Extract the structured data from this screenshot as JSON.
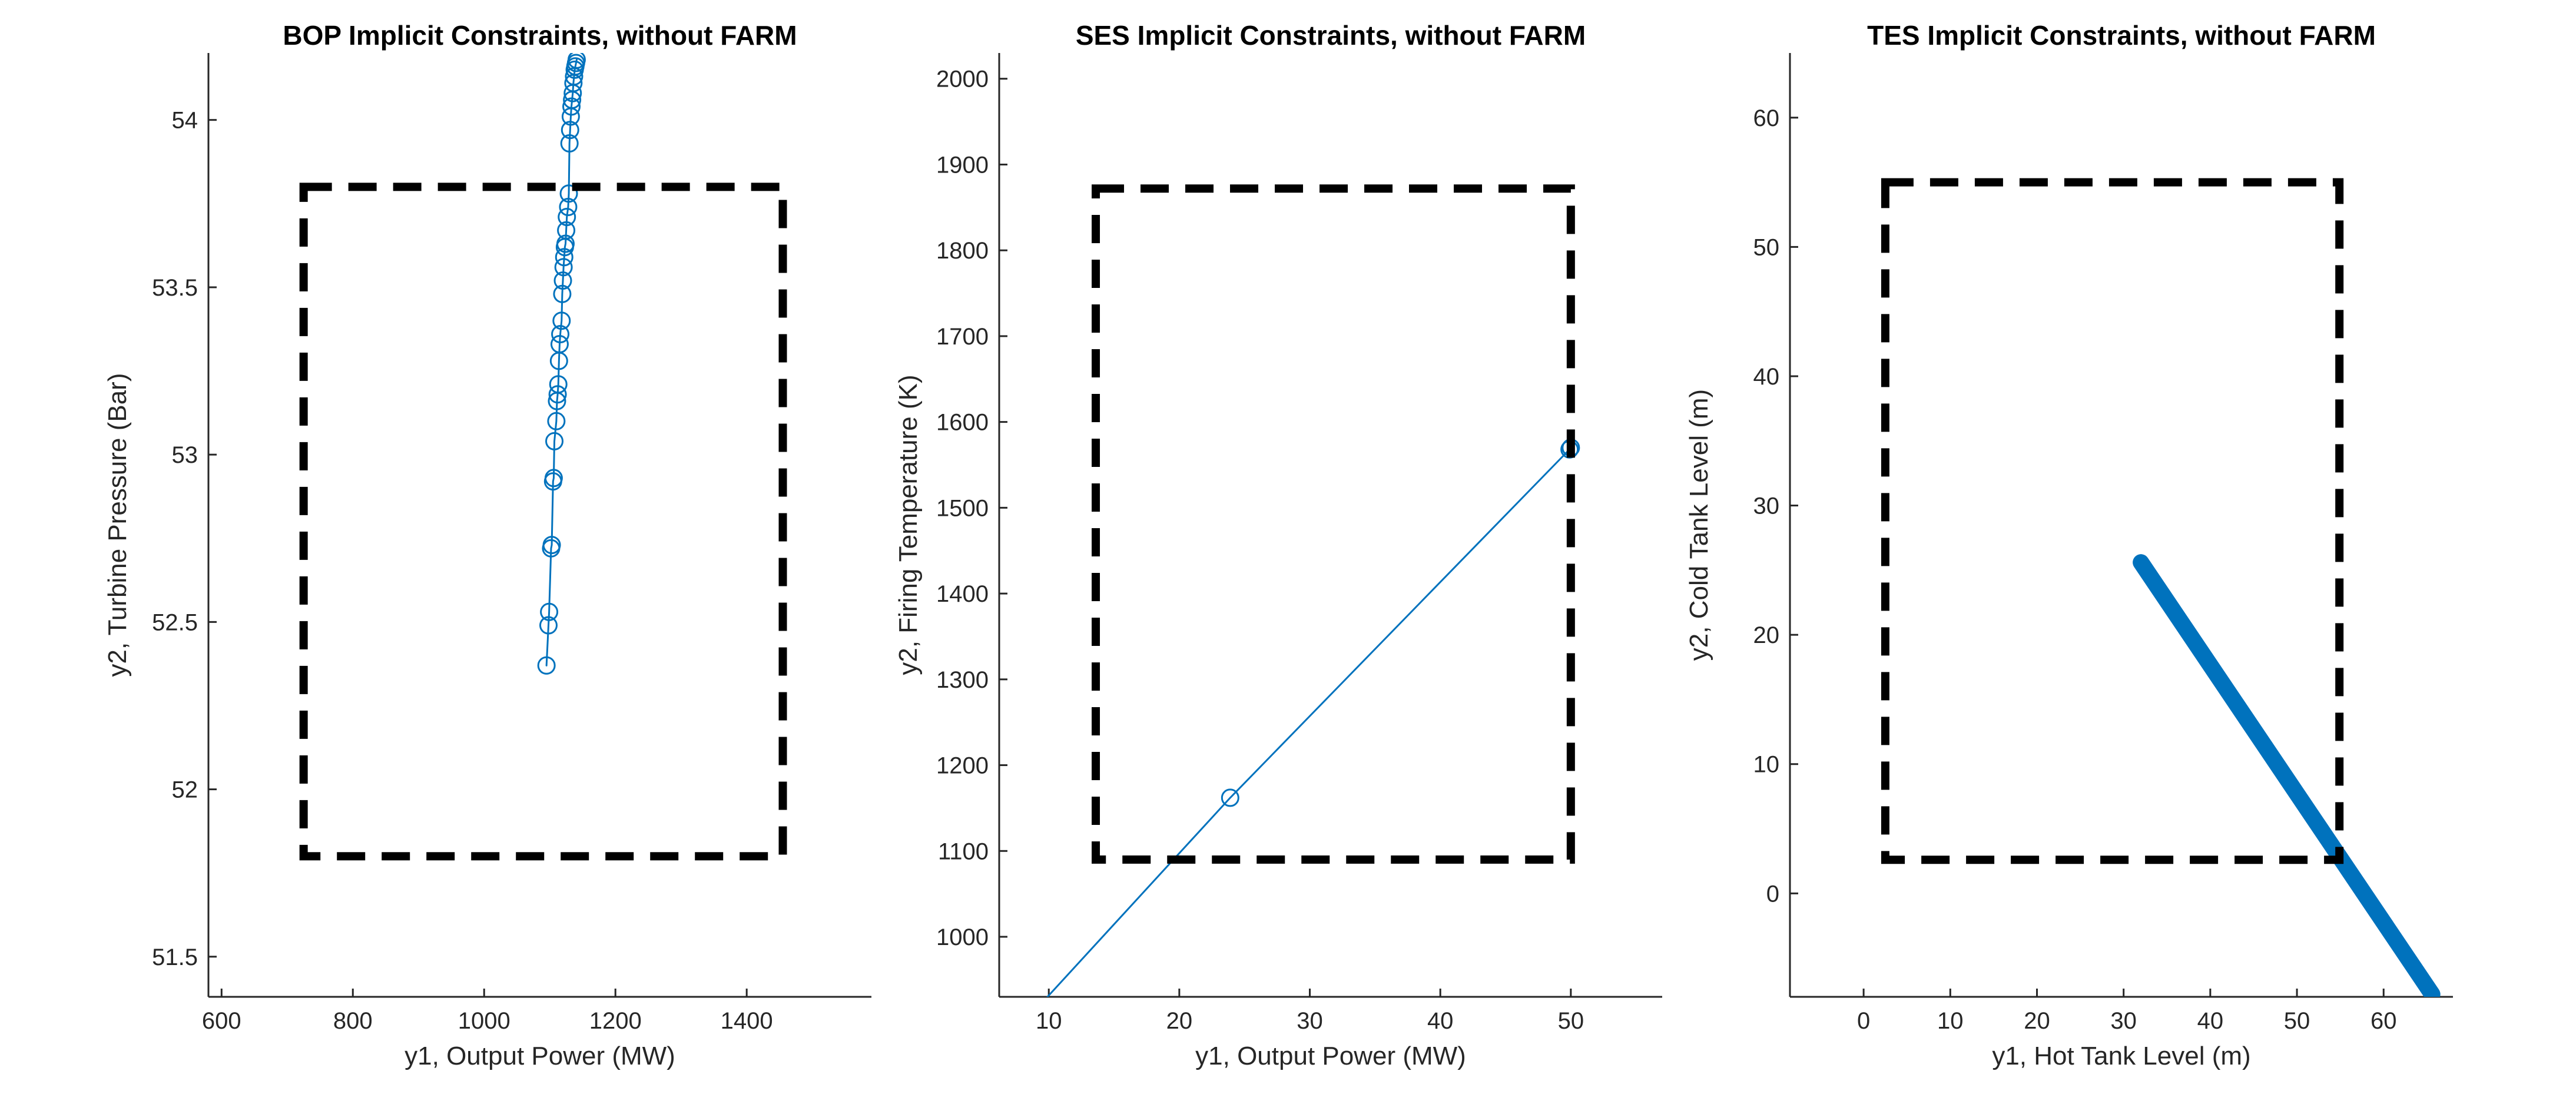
{
  "chart_data": [
    {
      "type": "line",
      "title": "BOP Implicit Constraints, without FARM",
      "xlabel": "y1, Output Power (MW)",
      "ylabel": "y2, Turbine Pressure (Bar)",
      "xlim": [
        580,
        1590
      ],
      "ylim": [
        51.38,
        54.2
      ],
      "xticks": [
        600,
        800,
        1000,
        1200,
        1400
      ],
      "yticks": [
        51.5,
        52,
        52.5,
        53,
        53.5,
        54
      ],
      "xtick_labels": [
        "600",
        "800",
        "1000",
        "1200",
        "1400"
      ],
      "ytick_labels": [
        "51.5",
        "52",
        "52.5",
        "53",
        "53.5",
        "54"
      ],
      "constraint_box": {
        "x": [
          725,
          1455
        ],
        "y": [
          51.8,
          53.8
        ]
      },
      "series": [
        {
          "marker": "circle",
          "color": "#0072BD",
          "x": [
            1095,
            1098,
            1099,
            1102,
            1103,
            1105,
            1106,
            1107,
            1110,
            1111,
            1112,
            1113,
            1114,
            1115,
            1116,
            1118,
            1119,
            1120,
            1121,
            1122,
            1123,
            1124,
            1125,
            1126,
            1128,
            1129,
            1130,
            1131,
            1132,
            1133,
            1134,
            1135,
            1136,
            1137,
            1138,
            1139,
            1140,
            1141
          ],
          "y": [
            52.37,
            52.49,
            52.53,
            52.72,
            52.73,
            52.92,
            52.93,
            53.04,
            53.1,
            53.16,
            53.18,
            53.21,
            53.28,
            53.33,
            53.36,
            53.4,
            53.48,
            53.52,
            53.56,
            53.59,
            53.62,
            53.63,
            53.67,
            53.71,
            53.74,
            53.78,
            53.93,
            53.97,
            54.01,
            54.04,
            54.06,
            54.08,
            54.11,
            54.13,
            54.15,
            54.16,
            54.17,
            54.18
          ]
        }
      ]
    },
    {
      "type": "line",
      "title": "SES Implicit Constraints, without FARM",
      "xlabel": "y1, Output Power (MW)",
      "ylabel": "y2, Firing Temperature (K)",
      "xlim": [
        6.2,
        57
      ],
      "ylim": [
        930,
        2030
      ],
      "xticks": [
        10,
        20,
        30,
        40,
        50
      ],
      "yticks": [
        1000,
        1100,
        1200,
        1300,
        1400,
        1500,
        1600,
        1700,
        1800,
        1900,
        2000
      ],
      "xtick_labels": [
        "10",
        "20",
        "30",
        "40",
        "50"
      ],
      "ytick_labels": [
        "1000",
        "1100",
        "1200",
        "1300",
        "1400",
        "1500",
        "1600",
        "1700",
        "1800",
        "1900",
        "2000"
      ],
      "constraint_box": {
        "x": [
          13.6,
          50
        ],
        "y": [
          1090,
          1872
        ]
      },
      "series": [
        {
          "marker": "circle",
          "color": "#0072BD",
          "x": [
            9.9,
            23.9,
            49.9,
            50.0
          ],
          "y": [
            930,
            1162,
            1568,
            1570
          ],
          "marker_indices": [
            1,
            2,
            3
          ]
        }
      ]
    },
    {
      "type": "line",
      "title": "TES Implicit Constraints, without FARM",
      "xlabel": "y1, Hot Tank Level (m)",
      "ylabel": "y2, Cold Tank Level (m)",
      "xlim": [
        -8.5,
        68
      ],
      "ylim": [
        -8,
        65
      ],
      "xticks": [
        0,
        10,
        20,
        30,
        40,
        50,
        60
      ],
      "yticks": [
        0,
        10,
        20,
        30,
        40,
        50,
        60
      ],
      "xtick_labels": [
        "0",
        "10",
        "20",
        "30",
        "40",
        "50",
        "60"
      ],
      "ytick_labels": [
        "0",
        "10",
        "20",
        "30",
        "40",
        "50",
        "60"
      ],
      "constraint_box": {
        "x": [
          2.5,
          54.9
        ],
        "y": [
          2.6,
          55
        ]
      },
      "series": [
        {
          "marker": "none",
          "color": "#0072BD",
          "thick": true,
          "x": [
            32,
            65.6
          ],
          "y": [
            25.6,
            -7.8
          ]
        }
      ]
    }
  ]
}
